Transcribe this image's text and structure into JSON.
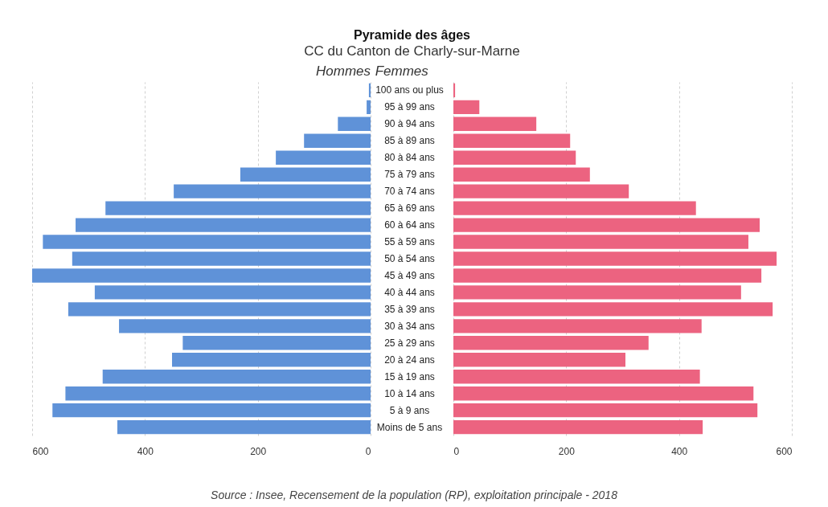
{
  "chart_data": [
    {
      "type": "bar",
      "orientation": "horizontal",
      "title": "Pyramide des âges",
      "subtitle": "CC du Canton de Charly-sur-Marne",
      "categories": [
        "100 ans ou plus",
        "95 à 99 ans",
        "90 à 94 ans",
        "85 à 89 ans",
        "80 à 84 ans",
        "75 à 79 ans",
        "70 à 74 ans",
        "65 à 69 ans",
        "60 à 64 ans",
        "55 à 59 ans",
        "50 à 54 ans",
        "45 à 49 ans",
        "40 à 44 ans",
        "35 à 39 ans",
        "30 à 34 ans",
        "25 à 29 ans",
        "20 à 24 ans",
        "15 à 19 ans",
        "10 à 14 ans",
        "5 à 9 ans",
        "Moins de 5 ans"
      ],
      "series": [
        {
          "name": "Hommes",
          "color": "#5f92d8",
          "values": [
            3,
            7,
            58,
            118,
            168,
            231,
            349,
            470,
            523,
            581,
            529,
            600,
            489,
            536,
            446,
            333,
            352,
            475,
            541,
            564,
            449
          ]
        }
      ],
      "xlim": [
        600,
        0
      ],
      "xticks": [
        600,
        400,
        200,
        0
      ],
      "grid": "x",
      "tick_labels": "x"
    },
    {
      "type": "bar",
      "orientation": "horizontal",
      "categories": [
        "100 ans ou plus",
        "95 à 99 ans",
        "90 à 94 ans",
        "85 à 89 ans",
        "80 à 84 ans",
        "75 à 79 ans",
        "70 à 74 ans",
        "65 à 69 ans",
        "60 à 64 ans",
        "55 à 59 ans",
        "50 à 54 ans",
        "45 à 49 ans",
        "40 à 44 ans",
        "35 à 39 ans",
        "30 à 34 ans",
        "25 à 29 ans",
        "20 à 24 ans",
        "15 à 19 ans",
        "10 à 14 ans",
        "5 à 9 ans",
        "Moins de 5 ans"
      ],
      "series": [
        {
          "name": "Femmes",
          "color": "#ec6380",
          "values": [
            3,
            46,
            147,
            207,
            217,
            242,
            311,
            430,
            543,
            523,
            573,
            546,
            510,
            566,
            440,
            346,
            305,
            437,
            532,
            539,
            442
          ]
        }
      ],
      "xlim": [
        0,
        600
      ],
      "xticks": [
        0,
        200,
        400,
        600
      ],
      "grid": "x",
      "annotations": [
        "Source : Insee, Recensement de la population (RP), exploitation principale - 2018"
      ]
    }
  ]
}
